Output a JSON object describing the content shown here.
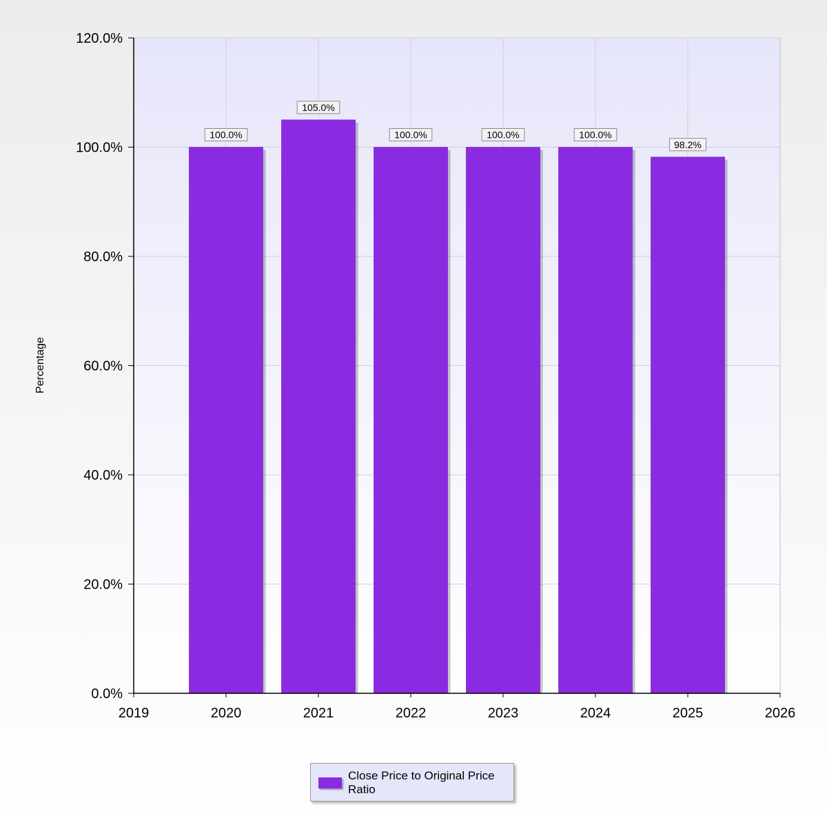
{
  "chart_data": {
    "type": "bar",
    "categories": [
      "2020",
      "2021",
      "2022",
      "2023",
      "2024",
      "2025"
    ],
    "x": [
      2020,
      2021,
      2022,
      2023,
      2024,
      2025
    ],
    "x_ticks": [
      "2019",
      "2020",
      "2021",
      "2022",
      "2023",
      "2024",
      "2025",
      "2026"
    ],
    "xlim": [
      2019,
      2026
    ],
    "series": [
      {
        "name": "Close Price to Original Price Ratio",
        "values": [
          100.0,
          105.0,
          100.0,
          100.0,
          100.0,
          98.2
        ],
        "labels": [
          "100.0%",
          "105.0%",
          "100.0%",
          "100.0%",
          "100.0%",
          "98.2%"
        ]
      }
    ],
    "title": "",
    "xlabel": "",
    "ylabel": "Percentage",
    "ylim": [
      0,
      120
    ],
    "y_ticks": [
      0,
      20,
      40,
      60,
      80,
      100,
      120
    ],
    "y_tick_labels": [
      "0.0%",
      "20.0%",
      "40.0%",
      "60.0%",
      "80.0%",
      "100.0%",
      "120.0%"
    ],
    "grid": true,
    "legend_position": "bottom-center",
    "colors": {
      "bar": "#8a2be2",
      "plot_background": "#e6e6fa",
      "grid": "#cfcfd8"
    }
  }
}
